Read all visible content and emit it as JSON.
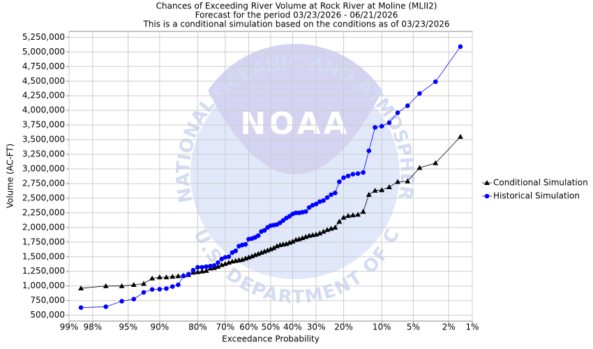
{
  "chart_data": {
    "type": "probability",
    "title": "Chances of Exceeding River Volume at Rock River at Moline (MLII2)",
    "subtitle": "Forecast for the period 03/23/2026 - 06/21/2026",
    "subtitle2": "This is a conditional simulation based on the conditions as of 03/23/2026",
    "xlabel": "Exceedance Probability",
    "ylabel": "Volume (AC-FT)",
    "xscale": "probit",
    "grid": true,
    "legend": "right",
    "watermark": {
      "logo": "NOAA",
      "top": "NATIONAL OCEANIC AND ATMOSPHERIC ADMINISTRATION",
      "bottom": "U.S. DEPARTMENT OF COMMERCE"
    },
    "xlim": [
      99,
      1
    ],
    "xticks": [
      {
        "value": 99,
        "label": "99%"
      },
      {
        "value": 98,
        "label": "98%"
      },
      {
        "value": 95,
        "label": "95%"
      },
      {
        "value": 90,
        "label": "90%"
      },
      {
        "value": 80,
        "label": "80%"
      },
      {
        "value": 70,
        "label": "70%"
      },
      {
        "value": 60,
        "label": "60%"
      },
      {
        "value": 50,
        "label": "50%"
      },
      {
        "value": 40,
        "label": "40%"
      },
      {
        "value": 30,
        "label": "30%"
      },
      {
        "value": 20,
        "label": "20%"
      },
      {
        "value": 10,
        "label": "10%"
      },
      {
        "value": 5,
        "label": "5%"
      },
      {
        "value": 2,
        "label": "2%"
      },
      {
        "value": 1,
        "label": "1%"
      }
    ],
    "ylim": [
      400000,
      5350000
    ],
    "yticks": [
      {
        "value": 500000,
        "label": "500,000"
      },
      {
        "value": 750000,
        "label": "750,000"
      },
      {
        "value": 1000000,
        "label": "1,000,000"
      },
      {
        "value": 1250000,
        "label": "1,250,000"
      },
      {
        "value": 1500000,
        "label": "1,500,000"
      },
      {
        "value": 1750000,
        "label": "1,750,000"
      },
      {
        "value": 2000000,
        "label": "2,000,000"
      },
      {
        "value": 2250000,
        "label": "2,250,000"
      },
      {
        "value": 2500000,
        "label": "2,500,000"
      },
      {
        "value": 2750000,
        "label": "2,750,000"
      },
      {
        "value": 3000000,
        "label": "3,000,000"
      },
      {
        "value": 3250000,
        "label": "3,250,000"
      },
      {
        "value": 3500000,
        "label": "3,500,000"
      },
      {
        "value": 3750000,
        "label": "3,750,000"
      },
      {
        "value": 4000000,
        "label": "4,000,000"
      },
      {
        "value": 4250000,
        "label": "4,250,000"
      },
      {
        "value": 4500000,
        "label": "4,500,000"
      },
      {
        "value": 4750000,
        "label": "4,750,000"
      },
      {
        "value": 5000000,
        "label": "5,000,000"
      },
      {
        "value": 5250000,
        "label": "5,250,000"
      }
    ],
    "x": [
      98.57,
      97.14,
      95.71,
      94.29,
      92.86,
      91.43,
      90,
      88.57,
      87.14,
      85.71,
      84.29,
      82.86,
      81.43,
      80,
      78.57,
      77.14,
      75.71,
      74.29,
      72.86,
      71.43,
      70,
      68.57,
      67.14,
      65.71,
      64.29,
      62.86,
      61.43,
      60,
      58.57,
      57.14,
      55.71,
      54.29,
      52.86,
      51.43,
      50,
      48.57,
      47.14,
      45.71,
      44.29,
      42.86,
      41.43,
      40,
      38.57,
      37.14,
      35.71,
      34.29,
      32.86,
      31.43,
      30,
      28.57,
      27.14,
      25.71,
      24.29,
      22.86,
      21.43,
      20,
      18.57,
      17.14,
      15.71,
      14.29,
      12.86,
      11.43,
      10,
      8.57,
      7.14,
      5.71,
      4.29,
      2.86,
      1.43
    ],
    "series": [
      {
        "name": "Conditional Simulation",
        "color": "#000000",
        "marker": "triangle",
        "values": [
          960000,
          1000000,
          1000000,
          1020000,
          1040000,
          1130000,
          1150000,
          1150000,
          1160000,
          1170000,
          1180000,
          1190000,
          1230000,
          1240000,
          1250000,
          1260000,
          1300000,
          1310000,
          1330000,
          1360000,
          1380000,
          1400000,
          1420000,
          1430000,
          1440000,
          1450000,
          1470000,
          1490000,
          1510000,
          1530000,
          1550000,
          1570000,
          1590000,
          1610000,
          1630000,
          1650000,
          1680000,
          1700000,
          1710000,
          1720000,
          1740000,
          1760000,
          1790000,
          1800000,
          1820000,
          1840000,
          1860000,
          1870000,
          1880000,
          1900000,
          1930000,
          1960000,
          1980000,
          2000000,
          2100000,
          2170000,
          2200000,
          2210000,
          2220000,
          2270000,
          2560000,
          2630000,
          2640000,
          2690000,
          2780000,
          2790000,
          3020000,
          3100000,
          3550000
        ]
      },
      {
        "name": "Historical Simulation",
        "color": "#0000ff",
        "marker": "circle",
        "values": [
          630000,
          645000,
          740000,
          775000,
          890000,
          940000,
          945000,
          955000,
          990000,
          1020000,
          1170000,
          1200000,
          1270000,
          1320000,
          1320000,
          1330000,
          1340000,
          1350000,
          1400000,
          1460000,
          1490000,
          1500000,
          1570000,
          1600000,
          1680000,
          1700000,
          1710000,
          1800000,
          1810000,
          1830000,
          1860000,
          1930000,
          1950000,
          2000000,
          2030000,
          2040000,
          2050000,
          2080000,
          2120000,
          2160000,
          2190000,
          2230000,
          2250000,
          2250000,
          2260000,
          2270000,
          2340000,
          2380000,
          2400000,
          2440000,
          2460000,
          2510000,
          2560000,
          2590000,
          2780000,
          2850000,
          2880000,
          2910000,
          2920000,
          2940000,
          3310000,
          3710000,
          3730000,
          3790000,
          3960000,
          4080000,
          4290000,
          4490000,
          5090000
        ]
      }
    ]
  }
}
